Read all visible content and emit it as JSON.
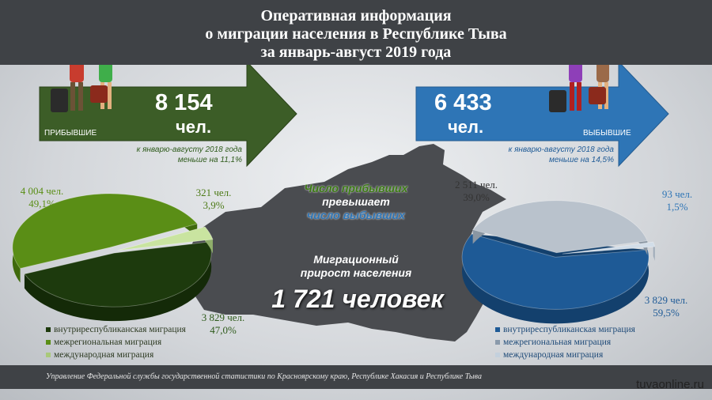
{
  "title": {
    "line1": "Оперативная информация",
    "line2": "о миграции населения в Республике Тыва",
    "line3": "за январь-август 2019 года"
  },
  "arrivals": {
    "value": "8 154",
    "unit": "чел.",
    "label": "ПРИБЫВШИЕ",
    "note_line1": "к январю-августу 2018 года",
    "note_line2": "меньше на 11,1%"
  },
  "departures": {
    "value": "6 433",
    "unit": "чел.",
    "label": "ВЫБЫВШИЕ",
    "note_line1": "к январю-августу 2018 года",
    "note_line2": "меньше на 14,5%"
  },
  "center": {
    "line1": "Число прибывших",
    "line2": "превышает",
    "line3": "число выбывших",
    "growth_label1": "Миграционный",
    "growth_label2": "прирост населения",
    "growth_value": "1 721 человек"
  },
  "legend": {
    "item1": "внутриреспубликанская миграция",
    "item2": "межрегиональная миграция",
    "item3": "международная миграция"
  },
  "colors": {
    "green_dark": "#1d3a0d",
    "green_mid": "#5a8e16",
    "green_light": "#c9e4a0",
    "blue_dark": "#1e5a96",
    "grey_mid": "#b9c2cc",
    "blue_light": "#d2dde8",
    "arrow_green": "#3c5d27",
    "arrow_blue": "#2e75b6"
  },
  "footer": {
    "source": "Управление Федеральной службы государственной статистики по Красноярскому краю, Республике Хакасия и Республике Тыва",
    "site": "tuvaonline.ru"
  },
  "chart_data": [
    {
      "type": "pie",
      "title": "",
      "categories": [
        "внутриреспубликанская миграция",
        "межрегиональная миграция",
        "международная миграция"
      ],
      "values": [
        3829,
        4004,
        321
      ],
      "percent": [
        47.0,
        49.1,
        3.9
      ],
      "labels": [
        {
          "value": "3 829 чел.",
          "percent": "47,0%"
        },
        {
          "value": "4 004 чел.",
          "percent": "49,1%"
        },
        {
          "value": "321 чел.",
          "percent": "3,9%"
        }
      ]
    },
    {
      "type": "pie",
      "title": "",
      "categories": [
        "внутриреспубликанская миграция",
        "межрегиональная миграция",
        "международная миграция"
      ],
      "values": [
        3829,
        2511,
        93
      ],
      "percent": [
        59.5,
        39.0,
        1.5
      ],
      "labels": [
        {
          "value": "3 829 чел.",
          "percent": "59,5%"
        },
        {
          "value": "2 511 чел.",
          "percent": "39,0%"
        },
        {
          "value": "93 чел.",
          "percent": "1,5%"
        }
      ]
    }
  ]
}
